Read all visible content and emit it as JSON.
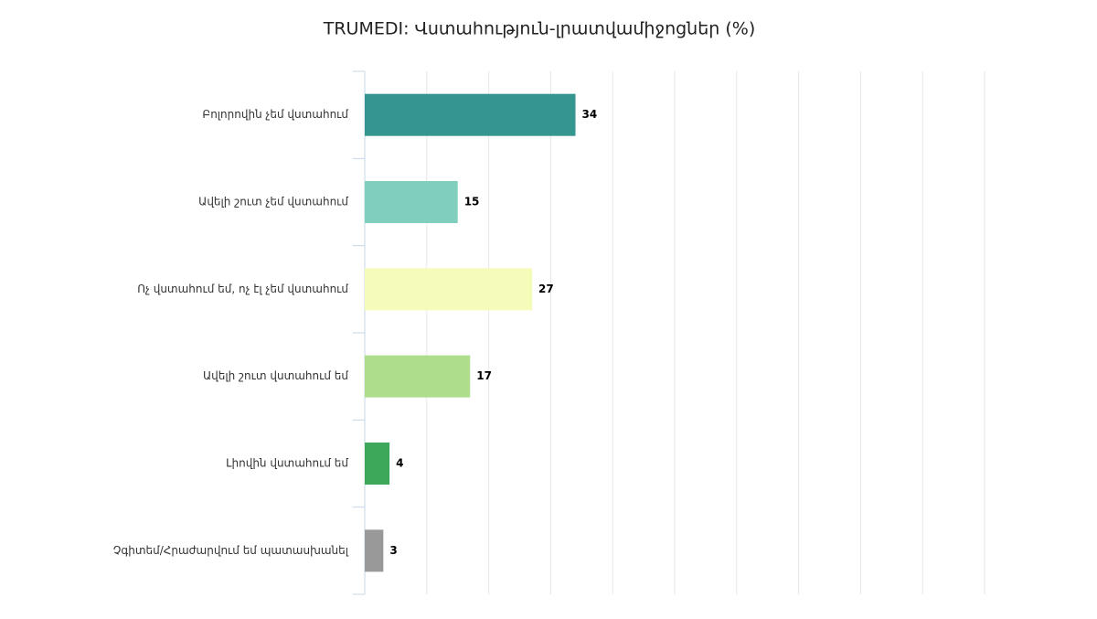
{
  "chart_data": {
    "type": "bar",
    "orientation": "horizontal",
    "title": "TRUMEDI: Վստահություն-լրատվամիջոցներ (%)",
    "categories": [
      "Բոլորովին չեմ վստահում",
      "Ավելի շուտ չեմ վստահում",
      "Ոչ վստահում եմ, ոչ էլ չեմ վստահում",
      "Ավելի շուտ վստահում եմ",
      "Լիովին վստահում եմ",
      "Չգիտեմ/Հրաժարվում եմ պատասխանել"
    ],
    "values": [
      34,
      15,
      27,
      17,
      4,
      3
    ],
    "colors": [
      "#35968f",
      "#80cfbd",
      "#f5fbb8",
      "#aede8c",
      "#3da85a",
      "#999999"
    ],
    "xlim": [
      0,
      100
    ],
    "xticks": [
      0,
      10,
      20,
      30,
      40,
      50,
      60,
      70,
      80,
      90,
      100
    ],
    "grid": true
  }
}
